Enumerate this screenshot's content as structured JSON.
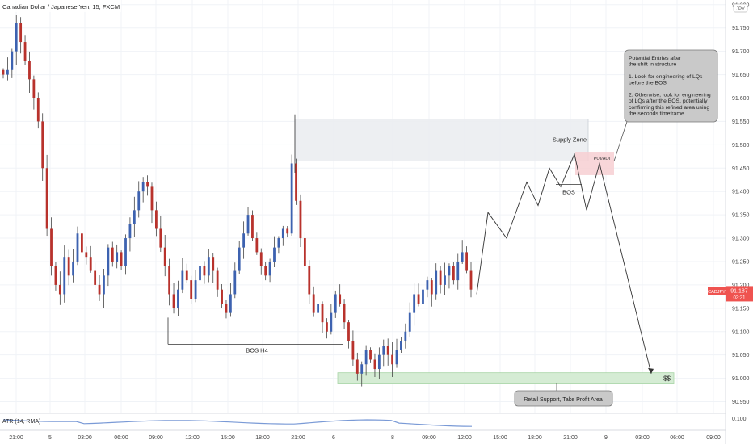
{
  "title": "Canadian Dollar / Japanese Yen, 15, FXCM",
  "currency_badge": "JPY",
  "y_axis": {
    "ticks": [
      "91.800",
      "91.750",
      "91.700",
      "91.650",
      "91.600",
      "91.550",
      "91.500",
      "91.450",
      "91.400",
      "91.350",
      "91.300",
      "91.250",
      "91.200",
      "91.150",
      "91.100",
      "91.050",
      "91.000",
      "90.950"
    ],
    "atr_tick": "0.100"
  },
  "x_axis": {
    "ticks": [
      "21:00",
      "5",
      "03:00",
      "06:00",
      "09:00",
      "12:00",
      "15:00",
      "18:00",
      "21:00",
      "6",
      "8",
      "09:00",
      "12:00",
      "15:00",
      "18:00",
      "21:00",
      "9",
      "03:00",
      "06:00",
      "09:00"
    ]
  },
  "price_tag": {
    "symbol": "CADJPY",
    "price": "91.187",
    "countdown": "03:31"
  },
  "indicator_label": "ATR (14, RMA)",
  "annotations": {
    "supply_zone": "Supply Zone",
    "bos_h4": "BOS H4",
    "bos": "BOS",
    "poi": "POI/AOI",
    "target": "$$",
    "callout_top": [
      "Potential Entries after",
      "the shift in structure",
      "",
      "1. Look for engineering of LQs",
      "before the BOS",
      "",
      "2. Otherwise, look for engineering",
      "of LQs after the BOS, potentially",
      "confirming this refined area using",
      "the seconds timeframe"
    ],
    "callout_bottom": "Retail Support, Take Profit Area"
  },
  "colors": {
    "bull": "#3d62b0",
    "bear": "#b8322c",
    "atr": "#7a9ad6",
    "price_tag": "#ef5350",
    "zone_supply": "#eceef1",
    "zone_support": "#d5ecd4",
    "poi": "#f7cfd2"
  },
  "chart_data": {
    "type": "candlestick",
    "ylim": [
      90.925,
      91.81
    ],
    "y_tick_values": [
      91.8,
      91.75,
      91.7,
      91.65,
      91.6,
      91.55,
      91.5,
      91.45,
      91.4,
      91.35,
      91.3,
      91.25,
      91.2,
      91.15,
      91.1,
      91.05,
      91.0,
      90.95
    ],
    "last_price": 91.187,
    "close_path": [
      91.65,
      91.66,
      91.7,
      91.76,
      91.72,
      91.68,
      91.64,
      91.6,
      91.55,
      91.45,
      91.32,
      91.24,
      91.2,
      91.18,
      91.26,
      91.22,
      91.25,
      91.31,
      91.27,
      91.26,
      91.23,
      91.2,
      91.18,
      91.22,
      91.28,
      91.25,
      91.27,
      91.24,
      91.3,
      91.33,
      91.36,
      91.4,
      91.42,
      91.41,
      91.36,
      91.32,
      91.28,
      91.24,
      91.18,
      91.15,
      91.19,
      91.23,
      91.21,
      91.17,
      91.21,
      91.24,
      91.22,
      91.26,
      91.23,
      91.19,
      91.16,
      91.14,
      91.18,
      91.23,
      91.28,
      91.31,
      91.35,
      91.3,
      91.27,
      91.24,
      91.22,
      91.25,
      91.28,
      91.3,
      91.32,
      91.31,
      91.46,
      91.38,
      91.3,
      91.24,
      91.18,
      91.14,
      91.16,
      91.12,
      91.1,
      91.14,
      91.18,
      91.16,
      91.12,
      91.08,
      91.04,
      91.01,
      91.03,
      91.06,
      91.04,
      91.02,
      91.05,
      91.07,
      91.05,
      91.03,
      91.06,
      91.08,
      91.1,
      91.14,
      91.18,
      91.16,
      91.19,
      91.21,
      91.18,
      91.23,
      91.2,
      91.22,
      91.24,
      91.21,
      91.25,
      91.27,
      91.23,
      91.19
    ],
    "projection": [
      [
        91.187,
        91.18
      ],
      [
        91.355,
        91.355
      ],
      [
        91.3,
        91.3
      ],
      [
        91.42,
        91.42
      ],
      [
        91.37,
        91.37
      ],
      [
        91.45,
        91.45
      ],
      [
        91.41,
        91.41
      ],
      [
        91.48,
        91.48
      ],
      [
        91.36,
        91.36
      ],
      [
        91.46,
        91.46
      ],
      [
        91.01,
        91.01
      ]
    ],
    "zones": {
      "supply": [
        91.465,
        91.555
      ],
      "support": [
        90.988,
        91.012
      ],
      "poi": [
        91.435,
        91.485
      ]
    },
    "levels": {
      "bos_h4": 91.073,
      "bos": 91.415
    }
  }
}
